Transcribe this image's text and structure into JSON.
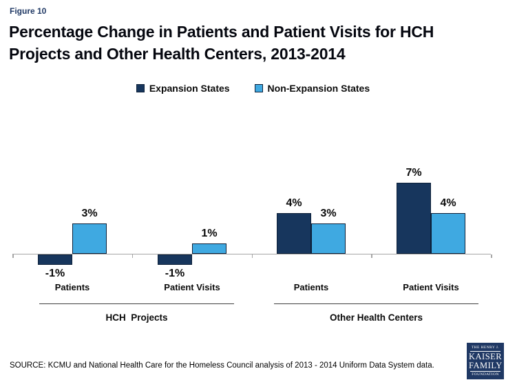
{
  "figure_label": "Figure 10",
  "title": {
    "line1": "Percentage Change in Patients and Patient Visits for HCH",
    "line2": "Projects and Other Health Centers, 2013-2014"
  },
  "legend": {
    "items": [
      {
        "label": "Expansion States",
        "color": "#17365D"
      },
      {
        "label": "Non-Expansion States",
        "color": "#3FA9E1"
      }
    ]
  },
  "chart_data": {
    "type": "bar",
    "categories": [
      "Patients",
      "Patient Visits",
      "Patients",
      "Patient Visits"
    ],
    "series": [
      {
        "name": "Expansion States",
        "color": "#17365D",
        "values": [
          -1,
          -1,
          4,
          7
        ]
      },
      {
        "name": "Non-Expansion States",
        "color": "#3FA9E1",
        "values": [
          3,
          1,
          3,
          4
        ]
      }
    ],
    "value_labels": [
      [
        "-1%",
        "-1%",
        "4%",
        "7%"
      ],
      [
        "3%",
        "1%",
        "3%",
        "4%"
      ]
    ],
    "group_labels": [
      "HCH  Projects",
      "Other Health Centers"
    ],
    "title": "Percentage Change in Patients and Patient Visits for HCH Projects and Other Health Centers, 2013-2014",
    "xlabel": "",
    "ylabel": "",
    "ylim": [
      -1.5,
      8
    ],
    "grid": false,
    "legend_position": "top",
    "axis_color": "#A6A6A6",
    "bar_border_color": "#0C1F38"
  },
  "source": "SOURCE: KCMU and National Health Care for the Homeless Council analysis of 2013 - 2014 Uniform Data System data.",
  "logo": {
    "top": "THE HENRY J.",
    "name1": "KAISER",
    "name2": "FAMILY",
    "bottom": "FOUNDATION"
  }
}
